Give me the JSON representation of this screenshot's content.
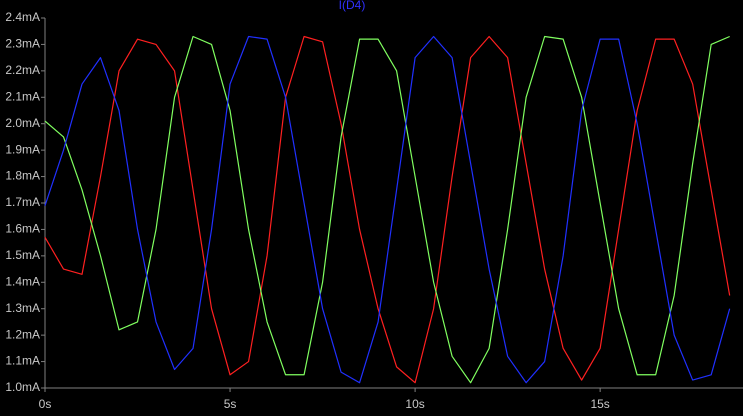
{
  "chart_data": {
    "type": "line",
    "title": "I(D4)",
    "x": [
      0,
      0.5,
      1,
      1.5,
      2,
      2.5,
      3,
      3.5,
      4,
      4.5,
      5,
      5.5,
      6,
      6.5,
      7,
      7.5,
      8,
      8.5,
      9,
      9.5,
      10,
      10.5,
      11,
      11.5,
      12,
      12.5,
      13,
      13.5,
      14,
      14.5,
      15,
      15.5,
      16,
      16.5,
      17,
      17.5,
      18,
      18.5
    ],
    "series": [
      {
        "color": "#ff2020",
        "values": [
          1.57,
          1.45,
          1.43,
          1.8,
          2.2,
          2.32,
          2.3,
          2.2,
          1.75,
          1.3,
          1.05,
          1.1,
          1.5,
          2.1,
          2.33,
          2.31,
          2.0,
          1.6,
          1.3,
          1.08,
          1.02,
          1.3,
          1.8,
          2.25,
          2.33,
          2.25,
          1.85,
          1.45,
          1.15,
          1.03,
          1.15,
          1.6,
          2.05,
          2.32,
          2.32,
          2.15,
          1.75,
          1.35
        ]
      },
      {
        "color": "#80ff60",
        "values": [
          2.01,
          1.95,
          1.75,
          1.5,
          1.22,
          1.25,
          1.6,
          2.1,
          2.33,
          2.3,
          2.05,
          1.6,
          1.25,
          1.05,
          1.05,
          1.4,
          1.95,
          2.32,
          2.32,
          2.2,
          1.8,
          1.4,
          1.12,
          1.02,
          1.15,
          1.6,
          2.1,
          2.33,
          2.32,
          2.1,
          1.7,
          1.3,
          1.05,
          1.05,
          1.35,
          1.85,
          2.3,
          2.33
        ]
      },
      {
        "color": "#2030ff",
        "values": [
          1.69,
          1.9,
          2.15,
          2.25,
          2.05,
          1.6,
          1.25,
          1.07,
          1.15,
          1.6,
          2.15,
          2.33,
          2.32,
          2.1,
          1.7,
          1.3,
          1.06,
          1.02,
          1.25,
          1.75,
          2.25,
          2.33,
          2.25,
          1.85,
          1.45,
          1.12,
          1.02,
          1.1,
          1.5,
          2.05,
          2.32,
          2.32,
          2.0,
          1.6,
          1.2,
          1.03,
          1.05,
          1.3
        ]
      }
    ],
    "xlim": [
      0,
      18.86
    ],
    "xticks": [
      {
        "value": 0,
        "label": "0s"
      },
      {
        "value": 5,
        "label": "5s"
      },
      {
        "value": 10,
        "label": "10s"
      },
      {
        "value": 15,
        "label": "15s"
      }
    ],
    "ylim": [
      1.0,
      2.4
    ],
    "yticks": [
      {
        "value": 1.0,
        "label": "1.0mA"
      },
      {
        "value": 1.1,
        "label": "1.1mA"
      },
      {
        "value": 1.2,
        "label": "1.2mA"
      },
      {
        "value": 1.3,
        "label": "1.3mA"
      },
      {
        "value": 1.4,
        "label": "1.4mA"
      },
      {
        "value": 1.5,
        "label": "1.5mA"
      },
      {
        "value": 1.6,
        "label": "1.6mA"
      },
      {
        "value": 1.7,
        "label": "1.7mA"
      },
      {
        "value": 1.8,
        "label": "1.8mA"
      },
      {
        "value": 1.9,
        "label": "1.9mA"
      },
      {
        "value": 2.0,
        "label": "2.0mA"
      },
      {
        "value": 2.1,
        "label": "2.1mA"
      },
      {
        "value": 2.2,
        "label": "2.2mA"
      },
      {
        "value": 2.3,
        "label": "2.3mA"
      },
      {
        "value": 2.4,
        "label": "2.4mA"
      }
    ]
  }
}
